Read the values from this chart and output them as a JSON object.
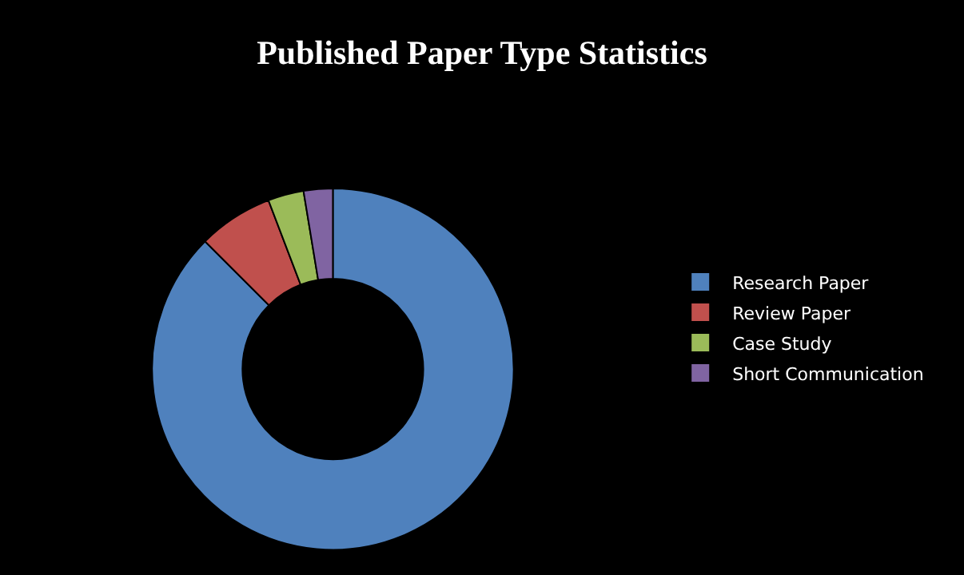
{
  "chart_data": {
    "type": "donut",
    "title": "Published Paper Type Statistics",
    "categories": [
      "Research Paper",
      "Review Paper",
      "Case Study",
      "Short Communication"
    ],
    "values": [
      87.5,
      6.7,
      3.2,
      2.6
    ],
    "colors": [
      "#4f81bd",
      "#c0504d",
      "#9bbb59",
      "#8064a2"
    ],
    "legend": "right"
  }
}
